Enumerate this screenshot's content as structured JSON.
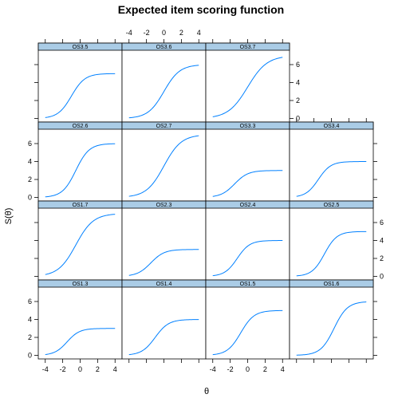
{
  "chart_data": {
    "type": "line",
    "title": "Expected item scoring function",
    "xlabel": "θ",
    "ylabel": "S(θ)",
    "xlim": [
      -4.8,
      4.8
    ],
    "ylim": [
      -0.4,
      7.6
    ],
    "xticks": [
      -4,
      -2,
      0,
      2,
      4
    ],
    "yticks": [
      0,
      2,
      4,
      6
    ],
    "line_color": "#0080ff",
    "strip_color": "#aacce6",
    "layout": {
      "columns": 4,
      "rows": 4
    },
    "panels": [
      {
        "name": "OS3.5",
        "grid": [
          0,
          0
        ],
        "max": 5,
        "center": -1.0,
        "slope": 1.3,
        "x": [
          -4,
          -3,
          -2,
          -1,
          0,
          1,
          2,
          3,
          4
        ],
        "values": [
          0.1,
          0.3,
          1.0,
          2.5,
          4.0,
          4.7,
          4.9,
          5.0,
          5.0
        ]
      },
      {
        "name": "OS3.6",
        "grid": [
          1,
          0
        ],
        "max": 6,
        "center": 0.0,
        "slope": 1.1,
        "x": [
          -4,
          -3,
          -2,
          -1,
          0,
          1,
          2,
          3,
          4
        ],
        "values": [
          0.1,
          0.2,
          0.6,
          1.5,
          3.0,
          4.5,
          5.4,
          5.8,
          5.9
        ]
      },
      {
        "name": "OS3.7",
        "grid": [
          2,
          0
        ],
        "max": 7,
        "center": 0.0,
        "slope": 0.9,
        "x": [
          -4,
          -3,
          -2,
          -1,
          0,
          1,
          2,
          3,
          4
        ],
        "values": [
          0.2,
          0.5,
          1.0,
          2.0,
          3.5,
          5.0,
          6.0,
          6.5,
          6.8
        ]
      },
      {
        "name": "OS2.6",
        "grid": [
          0,
          1
        ],
        "max": 6,
        "center": -0.5,
        "slope": 1.3,
        "x": [
          -4,
          -3,
          -2,
          -1,
          0,
          1,
          2,
          3,
          4
        ],
        "values": [
          0.1,
          0.3,
          0.9,
          2.2,
          3.9,
          5.2,
          5.7,
          5.9,
          6.0
        ]
      },
      {
        "name": "OS2.7",
        "grid": [
          1,
          1
        ],
        "max": 7,
        "center": 0.0,
        "slope": 1.0,
        "x": [
          -4,
          -3,
          -2,
          -1,
          0,
          1,
          2,
          3,
          4
        ],
        "values": [
          0.1,
          0.3,
          0.8,
          1.9,
          3.5,
          5.1,
          6.2,
          6.7,
          6.9
        ]
      },
      {
        "name": "OS3.3",
        "grid": [
          2,
          1
        ],
        "max": 3,
        "center": -1.5,
        "slope": 1.3,
        "x": [
          -4,
          -3,
          -2,
          -1,
          0,
          1,
          2,
          3,
          4
        ],
        "values": [
          0.1,
          0.4,
          1.1,
          2.1,
          2.7,
          2.9,
          3.0,
          3.0,
          3.0
        ]
      },
      {
        "name": "OS3.4",
        "grid": [
          3,
          1
        ],
        "max": 4,
        "center": -1.5,
        "slope": 1.4,
        "x": [
          -4,
          -3,
          -2,
          -1,
          0,
          1,
          2,
          3,
          4
        ],
        "values": [
          0.1,
          0.4,
          1.3,
          2.8,
          3.6,
          3.9,
          4.0,
          4.0,
          4.0
        ]
      },
      {
        "name": "OS1.7",
        "grid": [
          0,
          2
        ],
        "max": 7,
        "center": -0.5,
        "slope": 1.0,
        "x": [
          -4,
          -3,
          -2,
          -1,
          0,
          1,
          2,
          3,
          4
        ],
        "values": [
          0.2,
          0.5,
          1.2,
          2.6,
          4.3,
          5.7,
          6.5,
          6.8,
          6.9
        ]
      },
      {
        "name": "OS2.3",
        "grid": [
          1,
          2
        ],
        "max": 3,
        "center": -1.5,
        "slope": 1.3,
        "x": [
          -4,
          -3,
          -2,
          -1,
          0,
          1,
          2,
          3,
          4
        ],
        "values": [
          0.1,
          0.4,
          1.1,
          2.1,
          2.7,
          2.9,
          3.0,
          3.0,
          3.0
        ]
      },
      {
        "name": "OS2.4",
        "grid": [
          2,
          2
        ],
        "max": 4,
        "center": -1.2,
        "slope": 1.4,
        "x": [
          -4,
          -3,
          -2,
          -1,
          0,
          1,
          2,
          3,
          4
        ],
        "values": [
          0.1,
          0.3,
          1.0,
          2.4,
          3.5,
          3.9,
          4.0,
          4.0,
          4.0
        ]
      },
      {
        "name": "OS2.5",
        "grid": [
          3,
          2
        ],
        "max": 5,
        "center": -0.8,
        "slope": 1.4,
        "x": [
          -4,
          -3,
          -2,
          -1,
          0,
          1,
          2,
          3,
          4
        ],
        "values": [
          0.1,
          0.2,
          0.7,
          1.9,
          3.7,
          4.6,
          4.9,
          5.0,
          5.0
        ]
      },
      {
        "name": "OS1.3",
        "grid": [
          0,
          3
        ],
        "max": 3,
        "center": -1.5,
        "slope": 1.4,
        "x": [
          -4,
          -3,
          -2,
          -1,
          0,
          1,
          2,
          3,
          4
        ],
        "values": [
          0.1,
          0.3,
          1.0,
          2.0,
          2.7,
          2.9,
          3.0,
          3.0,
          3.0
        ]
      },
      {
        "name": "OS1.4",
        "grid": [
          1,
          3
        ],
        "max": 4,
        "center": -1.0,
        "slope": 1.3,
        "x": [
          -4,
          -3,
          -2,
          -1,
          0,
          1,
          2,
          3,
          4
        ],
        "values": [
          0.1,
          0.3,
          0.8,
          2.0,
          3.2,
          3.8,
          4.0,
          4.0,
          4.0
        ]
      },
      {
        "name": "OS1.5",
        "grid": [
          2,
          3
        ],
        "max": 5,
        "center": -0.8,
        "slope": 1.3,
        "x": [
          -4,
          -3,
          -2,
          -1,
          0,
          1,
          2,
          3,
          4
        ],
        "values": [
          0.1,
          0.3,
          0.9,
          2.1,
          3.6,
          4.5,
          4.9,
          5.0,
          5.0
        ]
      },
      {
        "name": "OS1.6",
        "grid": [
          3,
          3
        ],
        "max": 6,
        "center": 0.3,
        "slope": 1.3,
        "x": [
          -4,
          -3,
          -2,
          -1,
          0,
          1,
          2,
          3,
          4
        ],
        "values": [
          0.1,
          0.2,
          0.4,
          1.2,
          2.6,
          4.3,
          5.5,
          5.9,
          6.0
        ]
      }
    ]
  }
}
